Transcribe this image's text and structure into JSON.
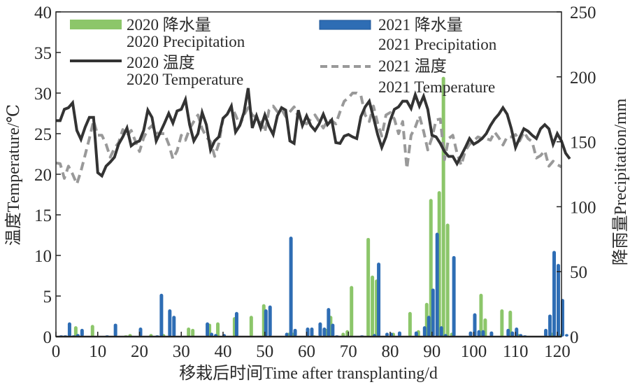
{
  "chart_data": {
    "type": "bar+line",
    "title": "",
    "xlabel": "移栽后时间Time after transplanting/d",
    "ylabel_left": "温度Temperature/℃",
    "ylabel_right": "降雨量Precipitation/mm",
    "xlim": [
      0,
      122
    ],
    "ylim_left": [
      0,
      40
    ],
    "ylim_right": [
      0,
      250
    ],
    "x_ticks": [
      "0",
      "10",
      "20",
      "30",
      "40",
      "50",
      "60",
      "70",
      "80",
      "90",
      "100",
      "110",
      "120"
    ],
    "y_left_ticks": [
      "0",
      "5",
      "10",
      "15",
      "20",
      "25",
      "30",
      "35",
      "40"
    ],
    "y_right_ticks": [
      "0",
      "50",
      "100",
      "150",
      "200",
      "250"
    ],
    "grid": false,
    "legend": {
      "placement": "top",
      "entries": [
        {
          "key": "p2020",
          "line1": "2020 降水量",
          "line2": "2020 Precipitation",
          "color": "#8cc66a",
          "style": "bar"
        },
        {
          "key": "p2021",
          "line1": "2021 降水量",
          "line2": "2021 Precipitation",
          "color": "#2e6db4",
          "style": "bar"
        },
        {
          "key": "t2020",
          "line1": "2020 温度",
          "line2": "2020 Temperature",
          "color": "#333333",
          "style": "solid"
        },
        {
          "key": "t2021",
          "line1": "2021 温度",
          "line2": "2021 Temperature",
          "color": "#999999",
          "style": "dashed"
        }
      ]
    },
    "series_bars": [
      {
        "name": "2020 降水量 2020 Precipitation",
        "color": "#8cc66a",
        "axis": "right",
        "points": [
          [
            5,
            8
          ],
          [
            9,
            9
          ],
          [
            17,
            1
          ],
          [
            18,
            2
          ],
          [
            23,
            2
          ],
          [
            26,
            2
          ],
          [
            32,
            7
          ],
          [
            33,
            6
          ],
          [
            37,
            10
          ],
          [
            39,
            11
          ],
          [
            43,
            15
          ],
          [
            47,
            16
          ],
          [
            50,
            25
          ],
          [
            56,
            3
          ],
          [
            57,
            3
          ],
          [
            62,
            1
          ],
          [
            65,
            6
          ],
          [
            66,
            16
          ],
          [
            69,
            3
          ],
          [
            70,
            5
          ],
          [
            71,
            39
          ],
          [
            75,
            76
          ],
          [
            76,
            47
          ],
          [
            77,
            44
          ],
          [
            81,
            3
          ],
          [
            85,
            19
          ],
          [
            87,
            5
          ],
          [
            89,
            26
          ],
          [
            90,
            106
          ],
          [
            92,
            112
          ],
          [
            93,
            200
          ],
          [
            94,
            87
          ],
          [
            95,
            3
          ],
          [
            102,
            33
          ],
          [
            103,
            14
          ],
          [
            107,
            21
          ],
          [
            109,
            20
          ],
          [
            111,
            2
          ],
          [
            119,
            3
          ],
          [
            121,
            2
          ]
        ]
      },
      {
        "name": "2021 降水量 2021 Precipitation",
        "color": "#2e6db4",
        "axis": "right",
        "points": [
          [
            1,
            1
          ],
          [
            2,
            1
          ],
          [
            3,
            11
          ],
          [
            4,
            1
          ],
          [
            5,
            2
          ],
          [
            6,
            6
          ],
          [
            12,
            1
          ],
          [
            14,
            10
          ],
          [
            20,
            7
          ],
          [
            24,
            1
          ],
          [
            25,
            33
          ],
          [
            27,
            21
          ],
          [
            28,
            16
          ],
          [
            36,
            11
          ],
          [
            37,
            3
          ],
          [
            38,
            2
          ],
          [
            40,
            2
          ],
          [
            43,
            19
          ],
          [
            50,
            21
          ],
          [
            51,
            24
          ],
          [
            55,
            3
          ],
          [
            56,
            77
          ],
          [
            57,
            6
          ],
          [
            60,
            7
          ],
          [
            61,
            7
          ],
          [
            63,
            11
          ],
          [
            64,
            7
          ],
          [
            65,
            22
          ],
          [
            66,
            10
          ],
          [
            67,
            1
          ],
          [
            73,
            1
          ],
          [
            76,
            2
          ],
          [
            77,
            57
          ],
          [
            79,
            3
          ],
          [
            80,
            3
          ],
          [
            82,
            4
          ],
          [
            86,
            4
          ],
          [
            88,
            8
          ],
          [
            89,
            16
          ],
          [
            90,
            37
          ],
          [
            91,
            80
          ],
          [
            92,
            8
          ],
          [
            93,
            2
          ],
          [
            95,
            62
          ],
          [
            99,
            4
          ],
          [
            100,
            18
          ],
          [
            101,
            5
          ],
          [
            102,
            5
          ],
          [
            104,
            4
          ],
          [
            108,
            6
          ],
          [
            109,
            4
          ],
          [
            110,
            7
          ],
          [
            111,
            2
          ],
          [
            112,
            1
          ],
          [
            117,
            6
          ],
          [
            118,
            17
          ],
          [
            119,
            66
          ],
          [
            120,
            56
          ],
          [
            121,
            29
          ],
          [
            122,
            2
          ]
        ]
      }
    ],
    "series_lines": [
      {
        "name": "2020 温度 2020 Temperature",
        "color": "#333333",
        "dash": false,
        "axis": "left",
        "x_start": 0,
        "values": [
          26.6,
          26.6,
          28.0,
          28.2,
          28.8,
          25.4,
          24.3,
          25.8,
          27.0,
          27.0,
          20.2,
          19.8,
          21.0,
          21.5,
          22.1,
          23.7,
          24.6,
          25.7,
          23.5,
          23.9,
          24.1,
          25.4,
          27.9,
          27.0,
          24.1,
          25.2,
          26.3,
          27.5,
          26.3,
          27.8,
          28.0,
          29.2,
          26.1,
          24.1,
          25.0,
          27.6,
          26.1,
          23.0,
          24.1,
          24.6,
          26.9,
          27.4,
          28.4,
          25.2,
          26.0,
          27.6,
          30.6,
          25.7,
          27.2,
          25.7,
          27.3,
          25.9,
          24.9,
          27.2,
          28.2,
          27.9,
          24.1,
          23.8,
          27.9,
          26.0,
          27.2,
          26.0,
          25.4,
          26.2,
          27.4,
          26.1,
          26.7,
          23.9,
          23.8,
          24.7,
          24.9,
          24.6,
          24.4,
          27.1,
          28.3,
          29.0,
          27.0,
          24.9,
          23.3,
          24.6,
          26.6,
          28.0,
          28.3,
          29.0,
          29.0,
          28.1,
          29.8,
          28.4,
          29.6,
          28.0,
          24.8,
          24.6,
          23.8,
          22.8,
          22.2,
          22.2,
          21.3,
          22.3,
          23.3,
          24.4,
          23.7,
          24.0,
          24.4,
          25.0,
          26.0,
          26.8,
          27.4,
          28.2,
          27.4,
          25.6,
          23.3,
          24.5,
          25.6,
          25.3,
          24.8,
          24.4,
          25.6,
          26.1,
          25.6,
          23.7,
          25.0,
          24.1,
          22.6,
          21.9
        ]
      },
      {
        "name": "2021 温度 2021 Temperature",
        "color": "#999999",
        "dash": true,
        "axis": "left",
        "x_start": 0,
        "values": [
          21.4,
          21.3,
          19.5,
          21.0,
          20.0,
          18.8,
          20.4,
          22.4,
          24.4,
          26.6,
          24.8,
          24.8,
          23.7,
          22.1,
          23.2,
          23.9,
          25.5,
          24.7,
          25.4,
          24.1,
          22.8,
          24.5,
          25.5,
          26.0,
          25.1,
          25.0,
          25.0,
          23.7,
          21.9,
          22.9,
          24.8,
          24.2,
          25.6,
          26.5,
          27.3,
          25.6,
          24.6,
          24.0,
          22.2,
          23.8,
          26.9,
          27.4,
          28.3,
          27.3,
          26.0,
          27.3,
          28.2,
          27.3,
          27.0,
          26.6,
          25.2,
          27.9,
          28.4,
          27.7,
          28.0,
          27.1,
          27.7,
          28.3,
          27.1,
          26.5,
          26.2,
          26.8,
          27.3,
          26.5,
          25.7,
          26.6,
          26.6,
          26.2,
          27.7,
          29.0,
          29.4,
          30.0,
          30.0,
          29.7,
          27.3,
          26.5,
          28.4,
          26.3,
          24.7,
          27.3,
          27.6,
          26.8,
          25.0,
          26.5,
          20.7,
          24.8,
          25.8,
          27.2,
          25.3,
          23.0,
          24.5,
          26.7,
          26.8,
          21.8,
          24.4,
          24.8,
          22.6,
          21.1,
          22.9,
          23.7,
          24.1,
          24.6,
          24.4,
          24.4,
          24.2,
          25.2,
          24.5,
          23.6,
          24.6,
          24.6,
          24.9,
          24.1,
          25.2,
          24.4,
          24.0,
          22.0,
          22.3,
          22.9,
          21.0,
          21.6,
          21.2,
          20.9
        ]
      }
    ]
  }
}
